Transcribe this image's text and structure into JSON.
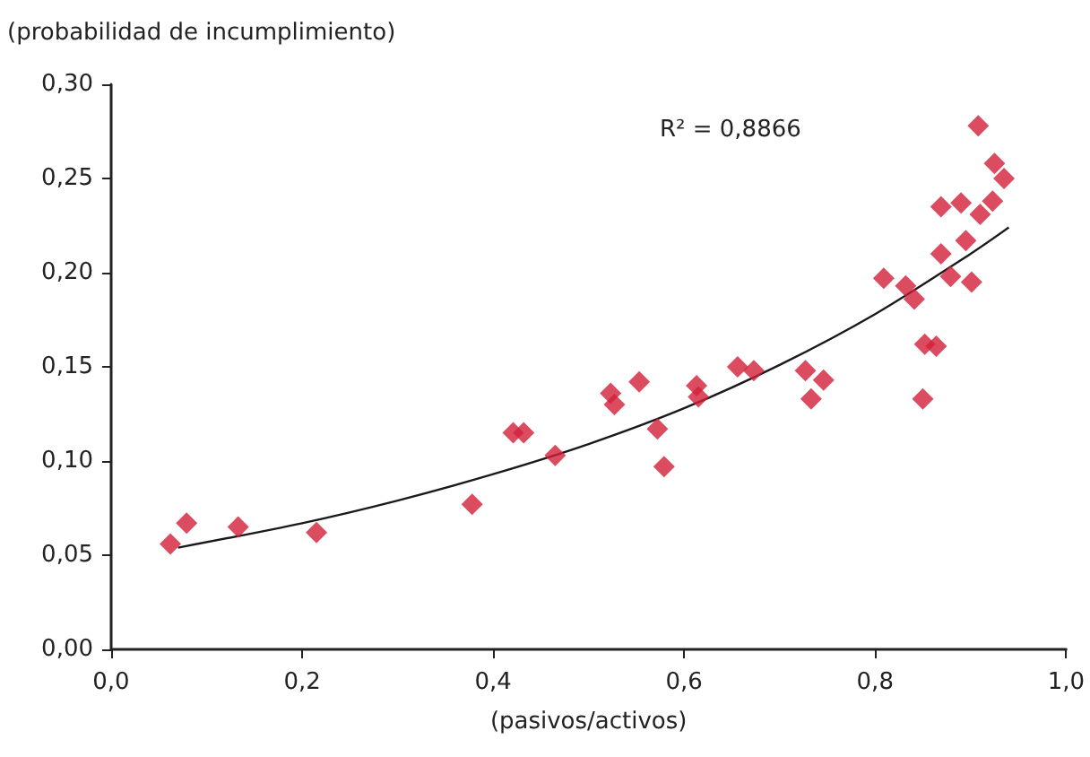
{
  "chart_data": {
    "type": "scatter",
    "xlabel": "(pasivos/activos)",
    "ylabel": "(probabilidad de incumplimiento)",
    "annotations": [
      "R² = 0,8866"
    ],
    "marker": "diamond",
    "grid": false,
    "xlim": [
      0,
      1
    ],
    "xticks": [
      {
        "value": 0,
        "label": "0,0"
      },
      {
        "value": 0.2,
        "label": "0,2"
      },
      {
        "value": 0.4,
        "label": "0,4"
      },
      {
        "value": 0.6,
        "label": "0,6"
      },
      {
        "value": 0.8,
        "label": "0,8"
      },
      {
        "value": 1,
        "label": "1,0"
      }
    ],
    "ylim": [
      0,
      0.3
    ],
    "yticks": [
      {
        "value": 0,
        "label": "0,00"
      },
      {
        "value": 0.05,
        "label": "0,05"
      },
      {
        "value": 0.1,
        "label": "0,10"
      },
      {
        "value": 0.15,
        "label": "0,15"
      },
      {
        "value": 0.2,
        "label": "0,20"
      },
      {
        "value": 0.25,
        "label": "0,25"
      },
      {
        "value": 0.3,
        "label": "0,30"
      }
    ],
    "series": [
      {
        "color": "#d31f3a",
        "x": [
          0.062,
          0.079,
          0.133,
          0.215,
          0.378,
          0.421,
          0.432,
          0.465,
          0.523,
          0.527,
          0.553,
          0.572,
          0.579,
          0.613,
          0.615,
          0.656,
          0.673,
          0.727,
          0.733,
          0.746,
          0.809,
          0.832,
          0.841,
          0.85,
          0.852,
          0.864,
          0.869,
          0.869,
          0.879,
          0.89,
          0.895,
          0.901,
          0.908,
          0.91,
          0.925,
          0.923,
          0.935
        ],
        "values": [
          0.056,
          0.067,
          0.065,
          0.062,
          0.077,
          0.115,
          0.115,
          0.103,
          0.136,
          0.13,
          0.142,
          0.117,
          0.097,
          0.14,
          0.134,
          0.15,
          0.148,
          0.148,
          0.133,
          0.143,
          0.197,
          0.193,
          0.186,
          0.133,
          0.162,
          0.161,
          0.235,
          0.21,
          0.198,
          0.237,
          0.217,
          0.195,
          0.278,
          0.231,
          0.258,
          0.238,
          0.25
        ]
      },
      {
        "type": "line",
        "color": "#1a1a1a",
        "marker": "none",
        "x": [
          0.07,
          0.2,
          0.3,
          0.4,
          0.5,
          0.6,
          0.7,
          0.8,
          0.9,
          0.94
        ],
        "values": [
          0.054,
          0.067,
          0.079,
          0.093,
          0.109,
          0.128,
          0.151,
          0.178,
          0.21,
          0.224
        ]
      }
    ]
  }
}
